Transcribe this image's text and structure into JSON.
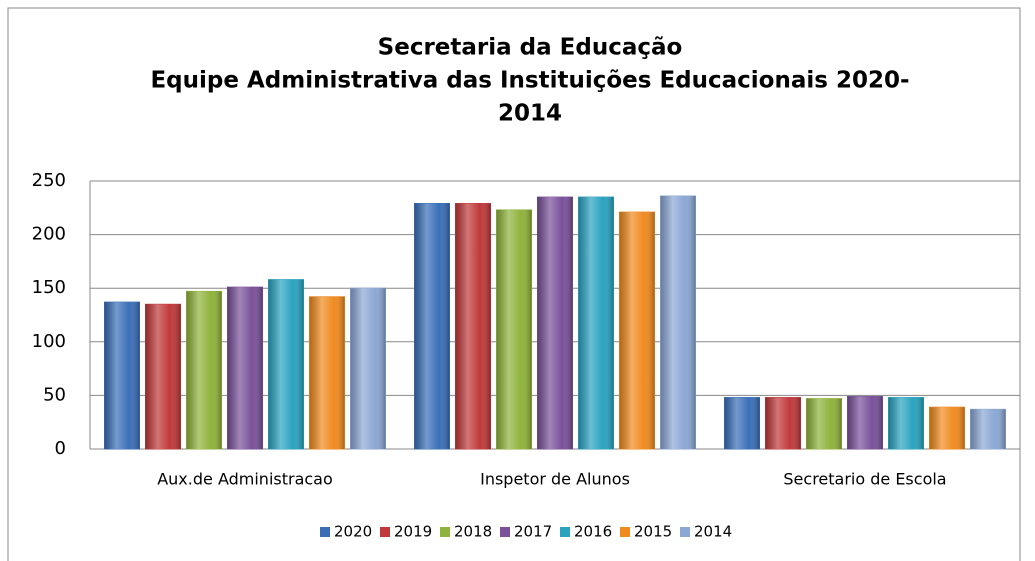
{
  "chart_data": {
    "type": "bar",
    "title": [
      "Secretaria da Educação",
      "Equipe Administrativa das Instituições Educacionais 2020-",
      "2014"
    ],
    "categories": [
      "Aux.de Administracao",
      "Inspetor de Alunos",
      "Secretario de Escola"
    ],
    "series": [
      {
        "name": "2020",
        "color": "#3a6fb8",
        "values": [
          137,
          229,
          48
        ]
      },
      {
        "name": "2019",
        "color": "#c0393b",
        "values": [
          135,
          229,
          48
        ]
      },
      {
        "name": "2018",
        "color": "#8fb33b",
        "values": [
          147,
          223,
          47
        ]
      },
      {
        "name": "2017",
        "color": "#7a519a",
        "values": [
          151,
          235,
          49
        ]
      },
      {
        "name": "2016",
        "color": "#2aa3c0",
        "values": [
          158,
          235,
          48
        ]
      },
      {
        "name": "2015",
        "color": "#f08a1f",
        "values": [
          142,
          221,
          39
        ]
      },
      {
        "name": "2014",
        "color": "#8ba7d4",
        "values": [
          150,
          236,
          37
        ]
      }
    ],
    "ylim": [
      0,
      250
    ],
    "yticks": [
      0,
      50,
      100,
      150,
      200,
      250
    ],
    "grid": true,
    "legend": "bottom"
  }
}
